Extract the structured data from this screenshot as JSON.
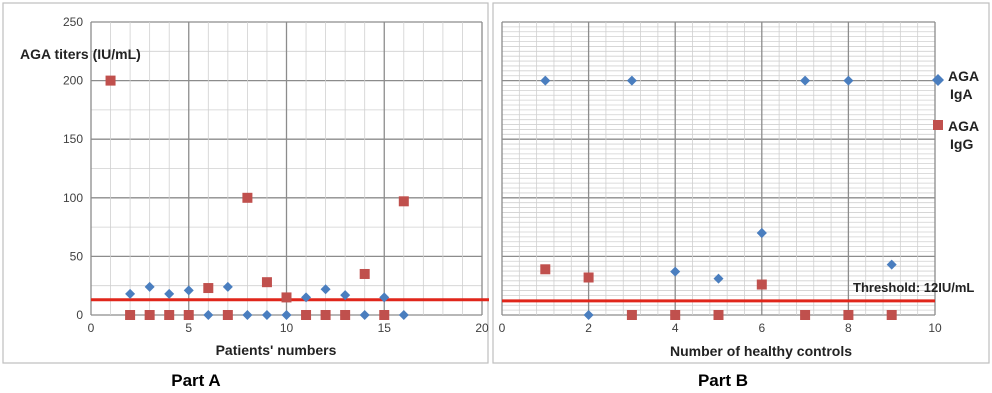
{
  "colors": {
    "iga": "#4a7ebf",
    "igg": "#c0504d",
    "threshold": "#e0261b"
  },
  "chart_data": [
    {
      "type": "scatter",
      "ylabel": "AGA titers (IU/mL)",
      "xlabel": "Patients' numbers",
      "xlim": [
        0,
        20
      ],
      "ylim": [
        0,
        250
      ],
      "xticks": [
        0,
        5,
        10,
        15,
        20
      ],
      "yticks": [
        0,
        50,
        100,
        150,
        200,
        250
      ],
      "grid": true,
      "threshold": 13,
      "part_label": "Part A",
      "series": [
        {
          "key": "iga",
          "x": [
            2,
            3,
            4,
            5,
            6,
            7,
            8,
            9,
            10,
            11,
            12,
            13,
            14,
            15,
            16
          ],
          "y": [
            18,
            24,
            18,
            21,
            0,
            24,
            0,
            0,
            0,
            15,
            22,
            17,
            0,
            15,
            0
          ]
        },
        {
          "key": "igg",
          "x": [
            1,
            2,
            3,
            4,
            5,
            6,
            7,
            8,
            9,
            10,
            11,
            12,
            13,
            14,
            15,
            16
          ],
          "y": [
            200,
            0,
            0,
            0,
            0,
            23,
            0,
            100,
            28,
            15,
            0,
            0,
            0,
            35,
            0,
            97
          ]
        }
      ]
    },
    {
      "type": "scatter",
      "xlabel": "Number of healthy controls",
      "xlim": [
        0,
        10
      ],
      "ylim": [
        0,
        250
      ],
      "xticks": [
        0,
        2,
        4,
        6,
        8,
        10
      ],
      "grid": true,
      "threshold": 12,
      "threshold_label": "Threshold: 12IU/mL",
      "part_label": "Part B",
      "legend_position": "right",
      "series": [
        {
          "key": "iga",
          "name": "AGA IgA",
          "x": [
            1,
            2,
            3,
            4,
            5,
            6,
            6,
            7,
            8,
            9
          ],
          "y": [
            200,
            0,
            200,
            37,
            31,
            70,
            70,
            200,
            200,
            43
          ]
        },
        {
          "key": "igg",
          "name": "AGA IgG",
          "x": [
            1,
            2,
            3,
            4,
            5,
            6,
            7,
            8,
            9
          ],
          "y": [
            39,
            32,
            0,
            0,
            0,
            26,
            0,
            0,
            0
          ]
        }
      ]
    }
  ]
}
